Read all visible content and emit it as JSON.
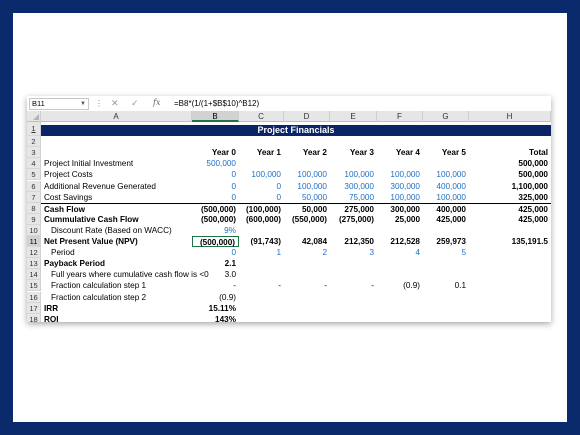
{
  "formula_bar": {
    "name_box": "B11",
    "fx": "fx",
    "formula": "=B8*(1/(1+$B$10)^B12)",
    "cancel": "✕",
    "confirm": "✓",
    "sep": "⋮"
  },
  "columns": [
    "A",
    "B",
    "C",
    "D",
    "E",
    "F",
    "G",
    "H"
  ],
  "rows": [
    "1",
    "2",
    "3",
    "4",
    "5",
    "6",
    "7",
    "8",
    "9",
    "10",
    "11",
    "12",
    "13",
    "14",
    "15",
    "16",
    "17",
    "18"
  ],
  "title": "Project Financials",
  "header_row": [
    "Year 0",
    "Year 1",
    "Year 2",
    "Year 3",
    "Year 4",
    "Year 5",
    "Total"
  ],
  "data": [
    {
      "label": "Project Initial Investment",
      "b": "500,000",
      "c": "",
      "d": "",
      "e": "",
      "f": "",
      "g": "",
      "h": "500,000"
    },
    {
      "label": "Project Costs",
      "b": "0",
      "c": "100,000",
      "d": "100,000",
      "e": "100,000",
      "f": "100,000",
      "g": "100,000",
      "h": "500,000"
    },
    {
      "label": "Additional Revenue Generated",
      "b": "0",
      "c": "0",
      "d": "100,000",
      "e": "300,000",
      "f": "300,000",
      "g": "400,000",
      "h": "1,100,000"
    },
    {
      "label": "Cost Savings",
      "b": "0",
      "c": "0",
      "d": "50,000",
      "e": "75,000",
      "f": "100,000",
      "g": "100,000",
      "h": "325,000"
    },
    {
      "label": "Cash Flow",
      "b": "(500,000)",
      "c": "(100,000)",
      "d": "50,000",
      "e": "275,000",
      "f": "300,000",
      "g": "400,000",
      "h": "425,000"
    },
    {
      "label": "Cummulative Cash Flow",
      "b": "(500,000)",
      "c": "(600,000)",
      "d": "(550,000)",
      "e": "(275,000)",
      "f": "25,000",
      "g": "425,000",
      "h": "425,000"
    },
    {
      "label": "Discount Rate (Based on WACC)",
      "b": "9%",
      "c": "",
      "d": "",
      "e": "",
      "f": "",
      "g": "",
      "h": ""
    },
    {
      "label": "Net Present Value (NPV)",
      "b": "(500,000)",
      "c": "(91,743)",
      "d": "42,084",
      "e": "212,350",
      "f": "212,528",
      "g": "259,973",
      "h": "135,191.5"
    },
    {
      "label": "Period",
      "b": "0",
      "c": "1",
      "d": "2",
      "e": "3",
      "f": "4",
      "g": "5",
      "h": ""
    },
    {
      "label": "Payback Period",
      "b": "2.1",
      "c": "",
      "d": "",
      "e": "",
      "f": "",
      "g": "",
      "h": ""
    },
    {
      "label": "Full years where cumulative cash flow is <0",
      "b": "3.0",
      "c": "",
      "d": "",
      "e": "",
      "f": "",
      "g": "",
      "h": ""
    },
    {
      "label": "Fraction calculation step 1",
      "b": "-",
      "c": "-",
      "d": "-",
      "e": "-",
      "f": "(0.9)",
      "g": "0.1",
      "h": ""
    },
    {
      "label": "Fraction calculation step 2",
      "b": "(0.9)",
      "c": "",
      "d": "",
      "e": "",
      "f": "",
      "g": "",
      "h": ""
    },
    {
      "label": "IRR",
      "b": "15.11%",
      "c": "",
      "d": "",
      "e": "",
      "f": "",
      "g": "",
      "h": ""
    },
    {
      "label": "ROI",
      "b": "143%",
      "c": "",
      "d": "",
      "e": "",
      "f": "",
      "g": "",
      "h": ""
    }
  ],
  "colors": {
    "title_bg": "#0b2465",
    "input_blue": "#1f6fc5",
    "frame_bg": "#0b2a6b"
  }
}
